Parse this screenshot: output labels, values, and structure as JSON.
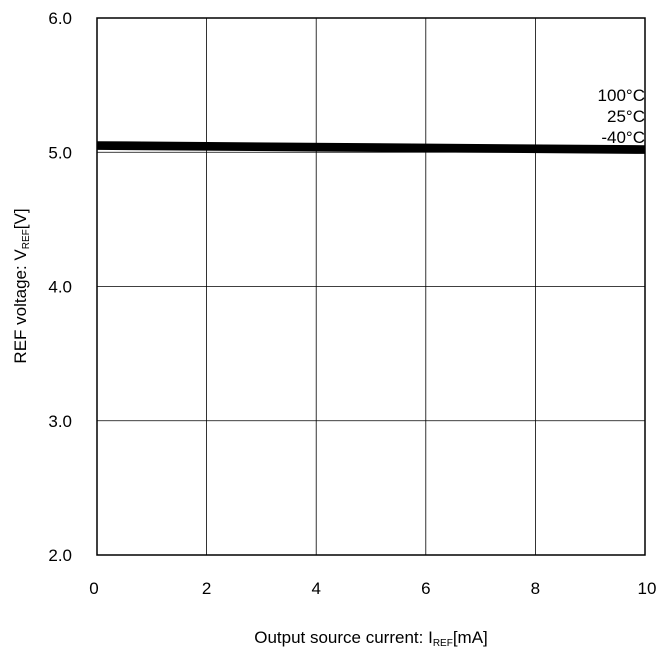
{
  "chart_data": {
    "type": "line",
    "xlabel": {
      "main": "Output source current: I",
      "sub": "REF",
      "unit": "[mA]"
    },
    "ylabel": {
      "main": "REF voltage: V",
      "sub": "REF",
      "unit": "[V]"
    },
    "xlim": [
      0,
      10
    ],
    "ylim": [
      2.0,
      6.0
    ],
    "x_ticks": [
      "0",
      "2",
      "4",
      "6",
      "8",
      "10"
    ],
    "y_ticks": [
      "2.0",
      "3.0",
      "4.0",
      "5.0",
      "6.0"
    ],
    "grid": true,
    "series": [
      {
        "name": "100°C",
        "x": [
          0,
          10
        ],
        "y": [
          5.06,
          5.03
        ]
      },
      {
        "name": "25°C",
        "x": [
          0,
          10
        ],
        "y": [
          5.05,
          5.02
        ]
      },
      {
        "name": "-40°C",
        "x": [
          0,
          10
        ],
        "y": [
          5.04,
          5.01
        ]
      }
    ],
    "line_color": "#000000"
  }
}
